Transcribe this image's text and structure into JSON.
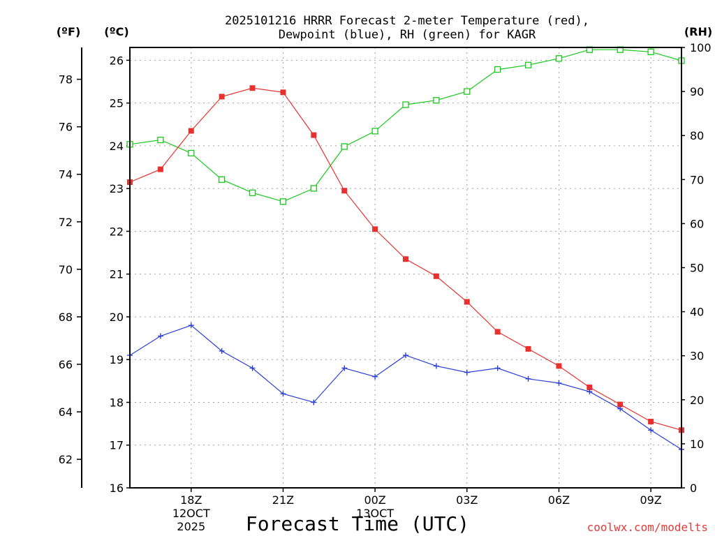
{
  "title_line1": "2025101216 HRRR Forecast 2-meter Temperature (red),",
  "title_line2": "Dewpoint (blue), RH (green) for KAGR",
  "units": {
    "fahrenheit": "(ºF)",
    "celsius": "(ºC)",
    "rh": "(RH)"
  },
  "xlabel": "Forecast Time (UTC)",
  "credit": "coolwx.com/modelts",
  "colors": {
    "temperature": "#e8302e",
    "dewpoint": "#2a3fd8",
    "rh": "#19c81c",
    "credit": "#e03c3c"
  },
  "chart_data": {
    "type": "line",
    "title": "2025101216 HRRR Forecast 2-meter Temperature (red), Dewpoint (blue), RH (green) for KAGR",
    "xlabel": "Forecast Time (UTC)",
    "x_hours_range": [
      16,
      34
    ],
    "x_ticks": [
      {
        "hour": 18,
        "label": "18Z",
        "date_lines": [
          "12OCT",
          "2025"
        ]
      },
      {
        "hour": 21,
        "label": "21Z",
        "date_lines": []
      },
      {
        "hour": 24,
        "label": "00Z",
        "date_lines": [
          "13OCT"
        ]
      },
      {
        "hour": 27,
        "label": "03Z",
        "date_lines": []
      },
      {
        "hour": 30,
        "label": "06Z",
        "date_lines": []
      },
      {
        "hour": 33,
        "label": "09Z",
        "date_lines": []
      }
    ],
    "x_hours": [
      16,
      17,
      18,
      19,
      20,
      21,
      22,
      23,
      24,
      25,
      26,
      27,
      28,
      29,
      30,
      31,
      32,
      33,
      34
    ],
    "y_celsius": {
      "range": [
        16,
        26.3
      ],
      "ticks": [
        16,
        17,
        18,
        19,
        20,
        21,
        22,
        23,
        24,
        25,
        26
      ]
    },
    "y_fahrenheit": {
      "ticks": [
        62,
        64,
        66,
        68,
        70,
        72,
        74,
        76,
        78
      ]
    },
    "y_rh": {
      "range": [
        0,
        100
      ],
      "ticks": [
        0,
        10,
        20,
        30,
        40,
        50,
        60,
        70,
        80,
        90,
        100
      ]
    },
    "series": [
      {
        "name": "2-meter Temperature",
        "unit": "C",
        "marker": "filled-square",
        "values": [
          23.15,
          23.45,
          24.35,
          25.15,
          25.35,
          25.25,
          24.25,
          22.95,
          22.05,
          21.35,
          20.95,
          20.35,
          19.65,
          19.25,
          18.85,
          18.35,
          17.95,
          17.55,
          17.35
        ]
      },
      {
        "name": "Dewpoint",
        "unit": "C",
        "marker": "plus",
        "values": [
          19.1,
          19.55,
          19.8,
          19.2,
          18.8,
          18.2,
          18.0,
          18.8,
          18.6,
          19.1,
          18.85,
          18.7,
          18.8,
          18.55,
          18.45,
          18.25,
          17.85,
          17.35,
          16.9
        ]
      },
      {
        "name": "Relative Humidity",
        "unit": "%",
        "marker": "open-square",
        "values": [
          78,
          79,
          76,
          70,
          67,
          65,
          68,
          77.5,
          81,
          87,
          88,
          90,
          95,
          96,
          97.5,
          99.5,
          99.5,
          99,
          97
        ]
      }
    ]
  }
}
